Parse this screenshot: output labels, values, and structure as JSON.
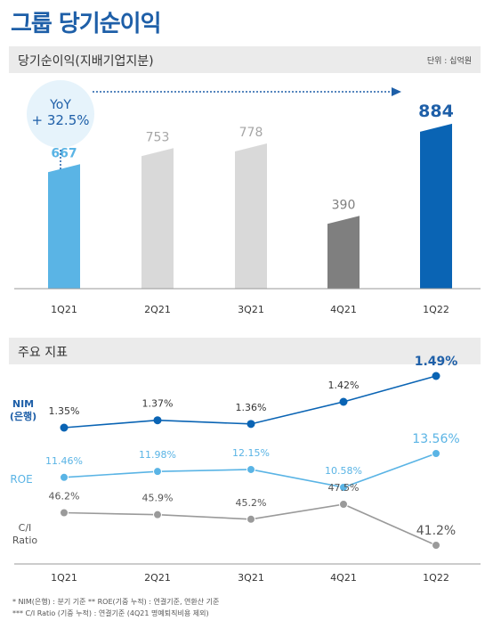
{
  "page_title": "그룹 당기순이익",
  "section1": {
    "label": "당기순이익(지배기업지분)",
    "unit": "단위 : 십억원"
  },
  "section2": {
    "label": "주요 지표"
  },
  "yoy": {
    "line1": "YoY",
    "line2": "+ 32.5%"
  },
  "colors": {
    "title": "#1e5fa8",
    "q1_21": "#5ab4e5",
    "mid_gray": "#d9d9d9",
    "dark_gray": "#7f7f7f",
    "q1_22": "#0a64b4",
    "roe": "#5ab4e5",
    "ci": "#9a9a9a"
  },
  "chart_data": [
    {
      "type": "bar",
      "categories": [
        "1Q21",
        "2Q21",
        "3Q21",
        "4Q21",
        "1Q22"
      ],
      "values": [
        667,
        753,
        778,
        390,
        884
      ],
      "value_labels": [
        "667",
        "753",
        "778",
        "390",
        "884"
      ],
      "title": "당기순이익(지배기업지분)",
      "ylim": [
        0,
        950
      ]
    },
    {
      "type": "line",
      "categories": [
        "1Q21",
        "2Q21",
        "3Q21",
        "4Q21",
        "1Q22"
      ],
      "series": [
        {
          "name": "NIM (은행)",
          "values": [
            1.35,
            1.37,
            1.36,
            1.42,
            1.49
          ],
          "labels": [
            "1.35%",
            "1.37%",
            "1.36%",
            "1.42%",
            "1.49%"
          ]
        },
        {
          "name": "ROE",
          "values": [
            11.46,
            11.98,
            12.15,
            10.58,
            13.56
          ],
          "labels": [
            "11.46%",
            "11.98%",
            "12.15%",
            "10.58%",
            "13.56%"
          ]
        },
        {
          "name": "C/I Ratio",
          "values": [
            46.2,
            45.9,
            45.2,
            47.5,
            41.2
          ],
          "labels": [
            "46.2%",
            "45.9%",
            "45.2%",
            "47.5%",
            "41.2%"
          ]
        }
      ],
      "title": "주요 지표"
    }
  ],
  "nim_label": {
    "line1": "NIM",
    "line2": "(은행)"
  },
  "roe_label": "ROE",
  "ci_label": {
    "line1": "C/I",
    "line2": "Ratio"
  },
  "footnotes": {
    "line1": "* NIM(은행) : 분기 기준     ** ROE(기중 누적) : 연결기준, 연환산 기준",
    "line2": "*** C/I Ratio (기중 누적) : 연결기준 (4Q21  명예퇴직비용  제외)"
  }
}
